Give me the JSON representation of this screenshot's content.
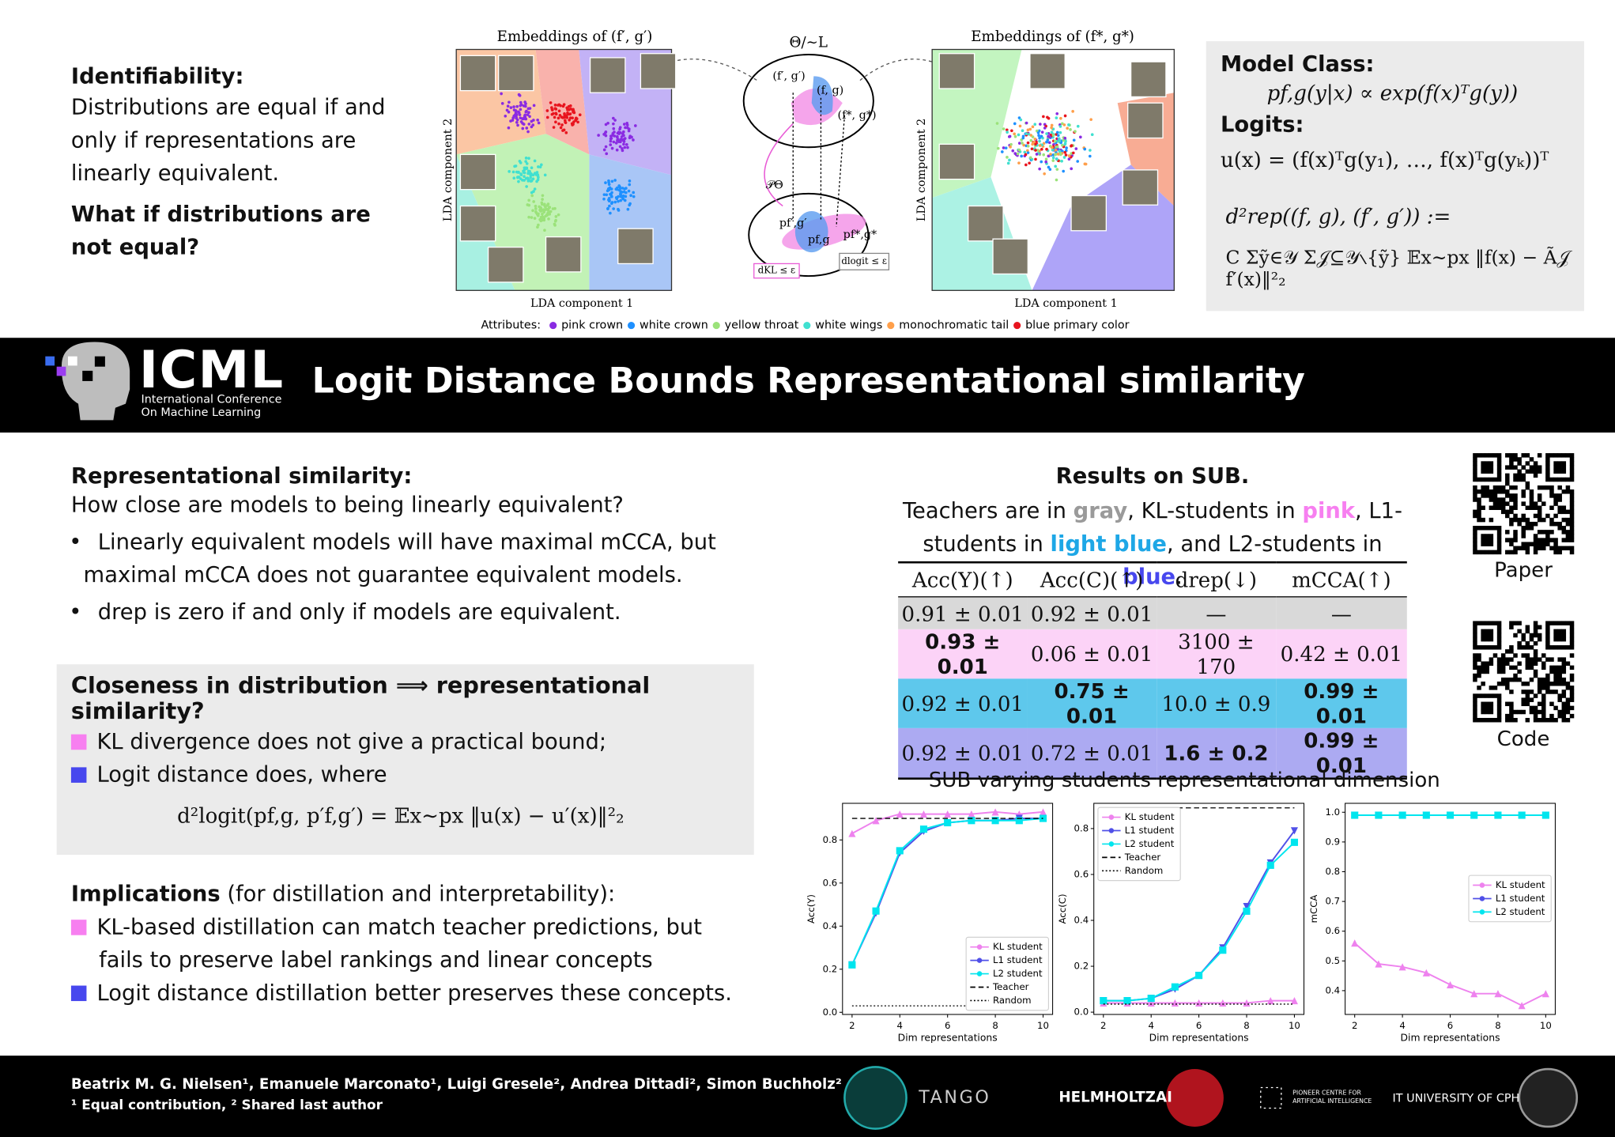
{
  "identifiability": {
    "heading": "Identifiability:",
    "text": "Distributions are equal if and only if representations are linearly equivalent.",
    "question": "What if distributions are not equal?"
  },
  "figure": {
    "left_title": "Embeddings of (f′, g′)",
    "middle_title": "Θ/∼L",
    "right_title": "Embeddings of (f*, g*)",
    "x_label": "LDA component 1",
    "y_label": "LDA component 2",
    "diagram_labels": [
      "(f′, g′)",
      "(f, g)",
      "(f*, g*)",
      "𝒫Θ",
      "pf′,g′",
      "pf,g",
      "pf*,g*",
      "dKL ≤ ε",
      "dlogit ≤ ε"
    ],
    "attributes_label": "Attributes:",
    "attributes": [
      {
        "name": "pink crown",
        "color": "#8a2be2"
      },
      {
        "name": "white crown",
        "color": "#1e90ff"
      },
      {
        "name": "yellow throat",
        "color": "#9be27a"
      },
      {
        "name": "white wings",
        "color": "#40e0d0"
      },
      {
        "name": "monochromatic tail",
        "color": "#ff9f4a"
      },
      {
        "name": "blue primary color",
        "color": "#e8141e"
      }
    ]
  },
  "model_class": {
    "heading": "Model Class:",
    "model": "pf,g(y|x) ∝ exp(f(x)ᵀg(y))",
    "logits_heading": "Logits:",
    "logits": "u(x) = (f(x)ᵀg(y₁), …, f(x)ᵀg(yₖ))ᵀ",
    "d_rep_lhs": "d²rep((f, g), (f′, g′)) :=",
    "d_rep_rhs": "C Σỹ∈𝒴 Σ𝒥⊆𝒴∖{ỹ} 𝔼x∼px ‖f(x) − Ã𝒥 f′(x)‖²₂"
  },
  "header": {
    "logo": "ICML",
    "logo_subtitle": [
      "International Conference",
      "On Machine Learning"
    ],
    "title": "Logit Distance Bounds Representational similarity"
  },
  "rep_sim": {
    "heading": "Representational similarity:",
    "question": "How close are models to being linearly equivalent?",
    "bullets": [
      "Linearly equivalent models will have maximal mCCA, but maximal mCCA does not guarantee equivalent models.",
      "drep is zero if and only if models are equivalent."
    ]
  },
  "closeness": {
    "heading": "Closeness in distribution ⟹ representational similarity?",
    "bullets": [
      {
        "text": "KL divergence does not give a practical bound;",
        "color": "#f77ff0"
      },
      {
        "text": "Logit distance does, where",
        "color": "#4747ee"
      }
    ],
    "formula": "d²logit(pf,g, p′f,g′) = 𝔼x∼px ‖u(x) − u′(x)‖²₂"
  },
  "implications": {
    "heading": "Implications",
    "heading_rest": "(for distillation and interpretability):",
    "bullets": [
      {
        "text": "KL-based distillation can match teacher predictions, but fails to preserve label rankings and linear concepts",
        "color": "#f77ff0"
      },
      {
        "text": "Logit distance distillation better preserves these concepts.",
        "color": "#4747ee"
      }
    ]
  },
  "results": {
    "title": "Results on SUB.",
    "caption": [
      {
        "text": "Teachers are in "
      },
      {
        "text": "gray",
        "color": "#9a9a9a"
      },
      {
        "text": ", KL-students in "
      },
      {
        "text": "pink",
        "color": "#f77ff0"
      },
      {
        "text": ", L1-students in "
      },
      {
        "text": "light blue",
        "color": "#1ea7e6"
      },
      {
        "text": ", and L2-students in "
      },
      {
        "text": "blue",
        "color": "#4747ee"
      },
      {
        "text": "."
      }
    ],
    "columns": [
      "Acc(Y)(↑)",
      "Acc(C)(↑)",
      "drep(↓)",
      "mCCA(↑)"
    ],
    "rows": [
      {
        "color": "#d9d9d9",
        "cells": [
          "0.91 ± 0.01",
          "0.92 ± 0.01",
          "—",
          "—"
        ],
        "bold": [
          false,
          false,
          false,
          false
        ]
      },
      {
        "color": "#fcd3f7",
        "cells": [
          "0.93 ± 0.01",
          "0.06 ± 0.01",
          "3100 ± 170",
          "0.42 ± 0.01"
        ],
        "bold": [
          true,
          false,
          false,
          false
        ]
      },
      {
        "color": "#5ec8ec",
        "cells": [
          "0.92 ± 0.01",
          "0.75 ± 0.01",
          "10.0 ± 0.9",
          "0.99 ± 0.01"
        ],
        "bold": [
          false,
          true,
          false,
          true
        ]
      },
      {
        "color": "#acaaf2",
        "cells": [
          "0.92 ± 0.01",
          "0.72 ± 0.01",
          "1.6 ± 0.2",
          "0.99 ± 0.01"
        ],
        "bold": [
          false,
          false,
          true,
          true
        ]
      }
    ]
  },
  "qr": {
    "paper": "Paper",
    "code": "Code"
  },
  "plots_title": "SUB  varying students representational dimension",
  "footer": {
    "authors": "Beatrix M. G. Nielsen¹, Emanuele Marconato¹, Luigi Gresele², Andrea Dittadi², Simon Buchholz²",
    "note": "¹ Equal contribution, ² Shared last author",
    "logos": [
      "TANGO",
      "HELMHOLTZAI",
      "PIONEER CENTRE FOR ARTIFICIAL INTELLIGENCE",
      "IT UNIVERSITY OF CPH"
    ]
  },
  "chart_data": [
    {
      "type": "line",
      "y_label": "Acc(Y)",
      "x_label": "Dim representations",
      "x": [
        2,
        3,
        4,
        5,
        6,
        7,
        8,
        9,
        10
      ],
      "xlim": [
        1.6,
        10.4
      ],
      "xticks": [
        2,
        4,
        6,
        8,
        10
      ],
      "ylim": [
        -0.01,
        0.97
      ],
      "yticks": [
        {
          "value": 0,
          "label": "0.0"
        },
        0.2,
        0.4,
        0.6,
        0.8
      ],
      "legend": "lower right",
      "series": [
        {
          "name": "KL student",
          "color": "#ee82ee",
          "marker": "^",
          "values": [
            0.83,
            0.89,
            0.92,
            0.92,
            0.92,
            0.92,
            0.93,
            0.92,
            0.93
          ]
        },
        {
          "name": "L1 student",
          "color": "#5050e8",
          "marker": "v",
          "values": [
            0.22,
            0.46,
            0.74,
            0.84,
            0.88,
            0.89,
            0.89,
            0.9,
            0.9
          ]
        },
        {
          "name": "L2 student",
          "color": "#00e5ee",
          "marker": "s",
          "values": [
            0.22,
            0.47,
            0.75,
            0.85,
            0.88,
            0.89,
            0.89,
            0.89,
            0.9
          ]
        },
        {
          "name": "Teacher",
          "color": "#000000",
          "linestyle": "dashed",
          "values": [
            0.9,
            0.9,
            0.9,
            0.9,
            0.9,
            0.9,
            0.9,
            0.9,
            0.9
          ]
        },
        {
          "name": "Random",
          "color": "#000000",
          "linestyle": "dotted",
          "values": [
            0.03,
            0.03,
            0.03,
            0.03,
            0.03,
            0.03,
            0.03,
            0.03,
            0.03
          ]
        }
      ]
    },
    {
      "type": "line",
      "y_label": "Acc(C)",
      "x_label": "Dim representations",
      "x": [
        2,
        3,
        4,
        5,
        6,
        7,
        8,
        9,
        10
      ],
      "xlim": [
        1.6,
        10.4
      ],
      "xticks": [
        2,
        4,
        6,
        8,
        10
      ],
      "ylim": [
        -0.01,
        0.91
      ],
      "yticks": [
        {
          "value": 0,
          "label": "0.0"
        },
        0.2,
        0.4,
        0.6,
        0.8
      ],
      "legend": "upper left",
      "series": [
        {
          "name": "KL student",
          "color": "#ee82ee",
          "marker": "^",
          "values": [
            0.04,
            0.04,
            0.04,
            0.04,
            0.04,
            0.04,
            0.04,
            0.05,
            0.05
          ]
        },
        {
          "name": "L1 student",
          "color": "#5050e8",
          "marker": "v",
          "values": [
            0.05,
            0.05,
            0.06,
            0.1,
            0.16,
            0.28,
            0.46,
            0.65,
            0.79
          ]
        },
        {
          "name": "L2 student",
          "color": "#00e5ee",
          "marker": "s",
          "values": [
            0.05,
            0.05,
            0.06,
            0.11,
            0.16,
            0.27,
            0.44,
            0.64,
            0.74
          ]
        },
        {
          "name": "Teacher",
          "color": "#000000",
          "linestyle": "dashed",
          "values": [
            0.89,
            0.89,
            0.89,
            0.89,
            0.89,
            0.89,
            0.89,
            0.89,
            0.89
          ]
        },
        {
          "name": "Random",
          "color": "#000000",
          "linestyle": "dotted",
          "values": [
            0.035,
            0.035,
            0.035,
            0.035,
            0.035,
            0.035,
            0.035,
            0.035,
            0.035
          ]
        }
      ]
    },
    {
      "type": "line",
      "y_label": "mCCA",
      "x_label": "Dim representations",
      "x": [
        2,
        3,
        4,
        5,
        6,
        7,
        8,
        9,
        10
      ],
      "xlim": [
        1.6,
        10.4
      ],
      "xticks": [
        2,
        4,
        6,
        8,
        10
      ],
      "ylim": [
        0.32,
        1.03
      ],
      "yticks": [
        0.4,
        0.5,
        0.6,
        0.7,
        0.8,
        0.9,
        {
          "value": 1,
          "label": "1.0"
        }
      ],
      "legend": "center right",
      "series": [
        {
          "name": "KL student",
          "color": "#ee82ee",
          "marker": "^",
          "values": [
            0.56,
            0.49,
            0.48,
            0.46,
            0.42,
            0.39,
            0.39,
            0.35,
            0.39
          ]
        },
        {
          "name": "L1 student",
          "color": "#5050e8",
          "marker": "v",
          "values": [
            0.99,
            0.99,
            0.99,
            0.99,
            0.99,
            0.99,
            0.99,
            0.99,
            0.99
          ]
        },
        {
          "name": "L2 student",
          "color": "#00e5ee",
          "marker": "s",
          "values": [
            0.99,
            0.99,
            0.99,
            0.99,
            0.99,
            0.99,
            0.99,
            0.99,
            0.99
          ]
        }
      ]
    }
  ]
}
